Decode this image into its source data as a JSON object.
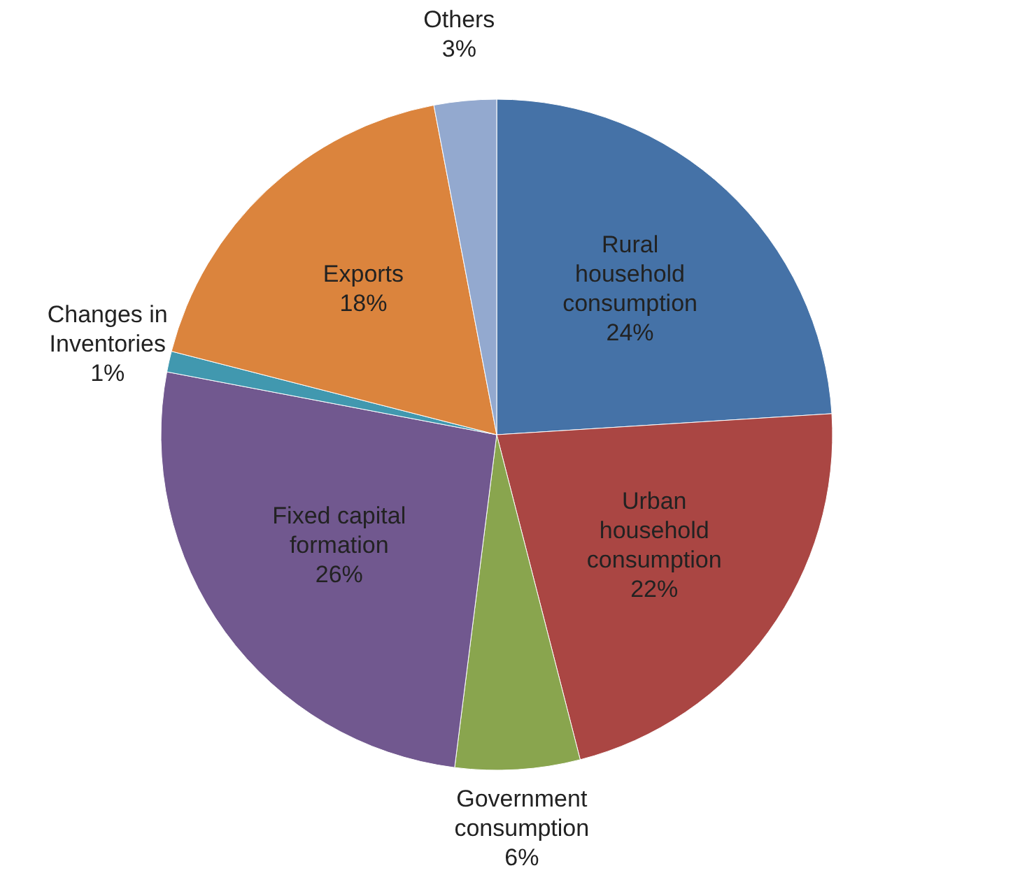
{
  "chart_data": {
    "type": "pie",
    "categories": [
      "Rural household consumption",
      "Urban household consumption",
      "Government consumption",
      "Fixed capital formation",
      "Changes in Inventories",
      "Exports",
      "Others"
    ],
    "values": [
      24,
      22,
      6,
      26,
      1,
      18,
      3
    ],
    "colors": [
      "#4572a7",
      "#aa4643",
      "#89a54e",
      "#71588f",
      "#4198af",
      "#db843d",
      "#93a9cf"
    ],
    "value_labels": [
      "24%",
      "22%",
      "6%",
      "26%",
      "1%",
      "18%",
      "3%"
    ],
    "legend": false
  }
}
